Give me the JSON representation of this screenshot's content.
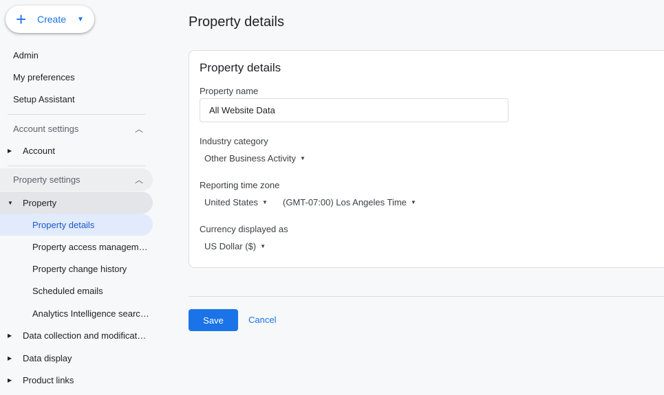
{
  "sidebar": {
    "create_label": "Create",
    "top_items": [
      "Admin",
      "My preferences",
      "Setup Assistant"
    ],
    "account_settings": {
      "label": "Account settings",
      "items": [
        "Account"
      ]
    },
    "property_settings": {
      "label": "Property settings",
      "property": "Property",
      "property_children": [
        "Property details",
        "Property access management",
        "Property change history",
        "Scheduled emails",
        "Analytics Intelligence search history"
      ],
      "other_items": [
        "Data collection and modification",
        "Data display",
        "Product links"
      ]
    }
  },
  "main": {
    "page_title": "Property details",
    "card": {
      "title": "Property details",
      "property_name_label": "Property name",
      "property_name_value": "All Website Data",
      "industry_label": "Industry category",
      "industry_value": "Other Business Activity",
      "timezone_label": "Reporting time zone",
      "country_value": "United States",
      "timezone_value": "(GMT-07:00) Los Angeles Time",
      "currency_label": "Currency displayed as",
      "currency_value": "US Dollar ($)"
    },
    "save_label": "Save",
    "cancel_label": "Cancel"
  },
  "colors": {
    "accent": "#1a73e8",
    "selected_bg": "#e1ebfb"
  }
}
